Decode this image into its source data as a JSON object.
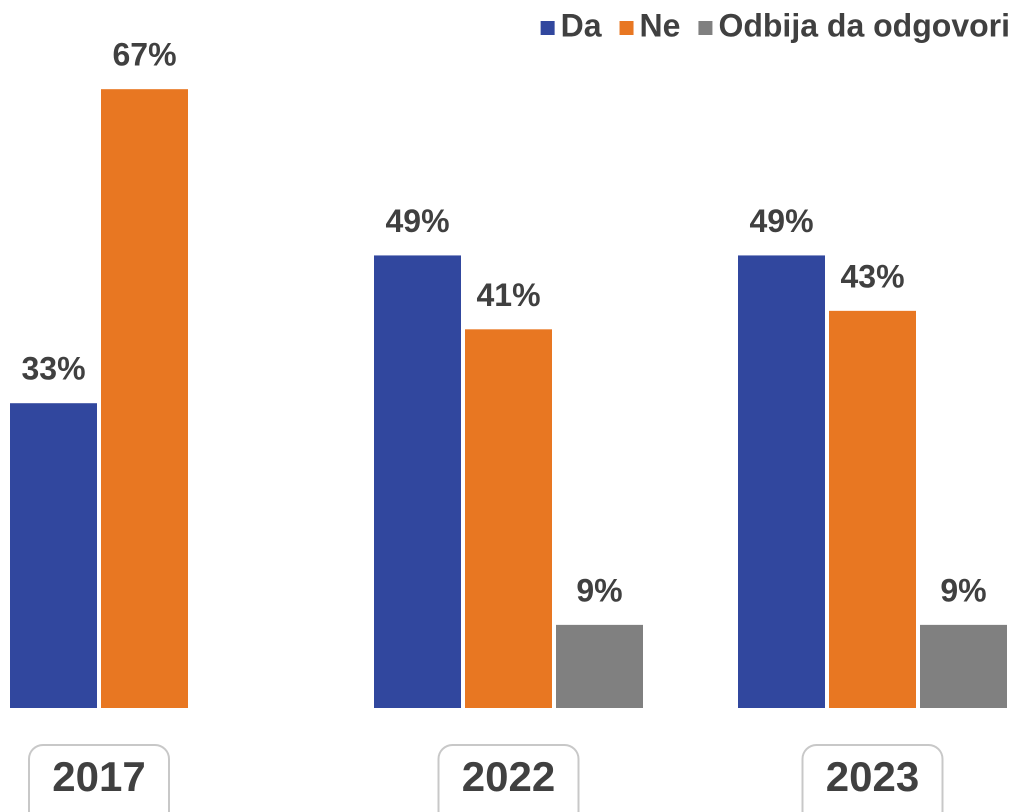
{
  "chart_data": {
    "type": "bar",
    "categories": [
      "2017",
      "2022",
      "2023"
    ],
    "series": [
      {
        "name": "Da",
        "color": "#31479e",
        "values": [
          33,
          49,
          49
        ],
        "value_labels": [
          "33%",
          "49%",
          "49%"
        ]
      },
      {
        "name": "Ne",
        "color": "#e87722",
        "values": [
          67,
          41,
          43
        ],
        "value_labels": [
          "67%",
          "41%",
          "43%"
        ]
      },
      {
        "name": "Odbija da odgovori",
        "color": "#808080",
        "values": [
          null,
          9,
          9
        ],
        "value_labels": [
          null,
          "9%",
          "9%"
        ]
      }
    ],
    "ylim": [
      0,
      72
    ],
    "legend": "top-right"
  }
}
